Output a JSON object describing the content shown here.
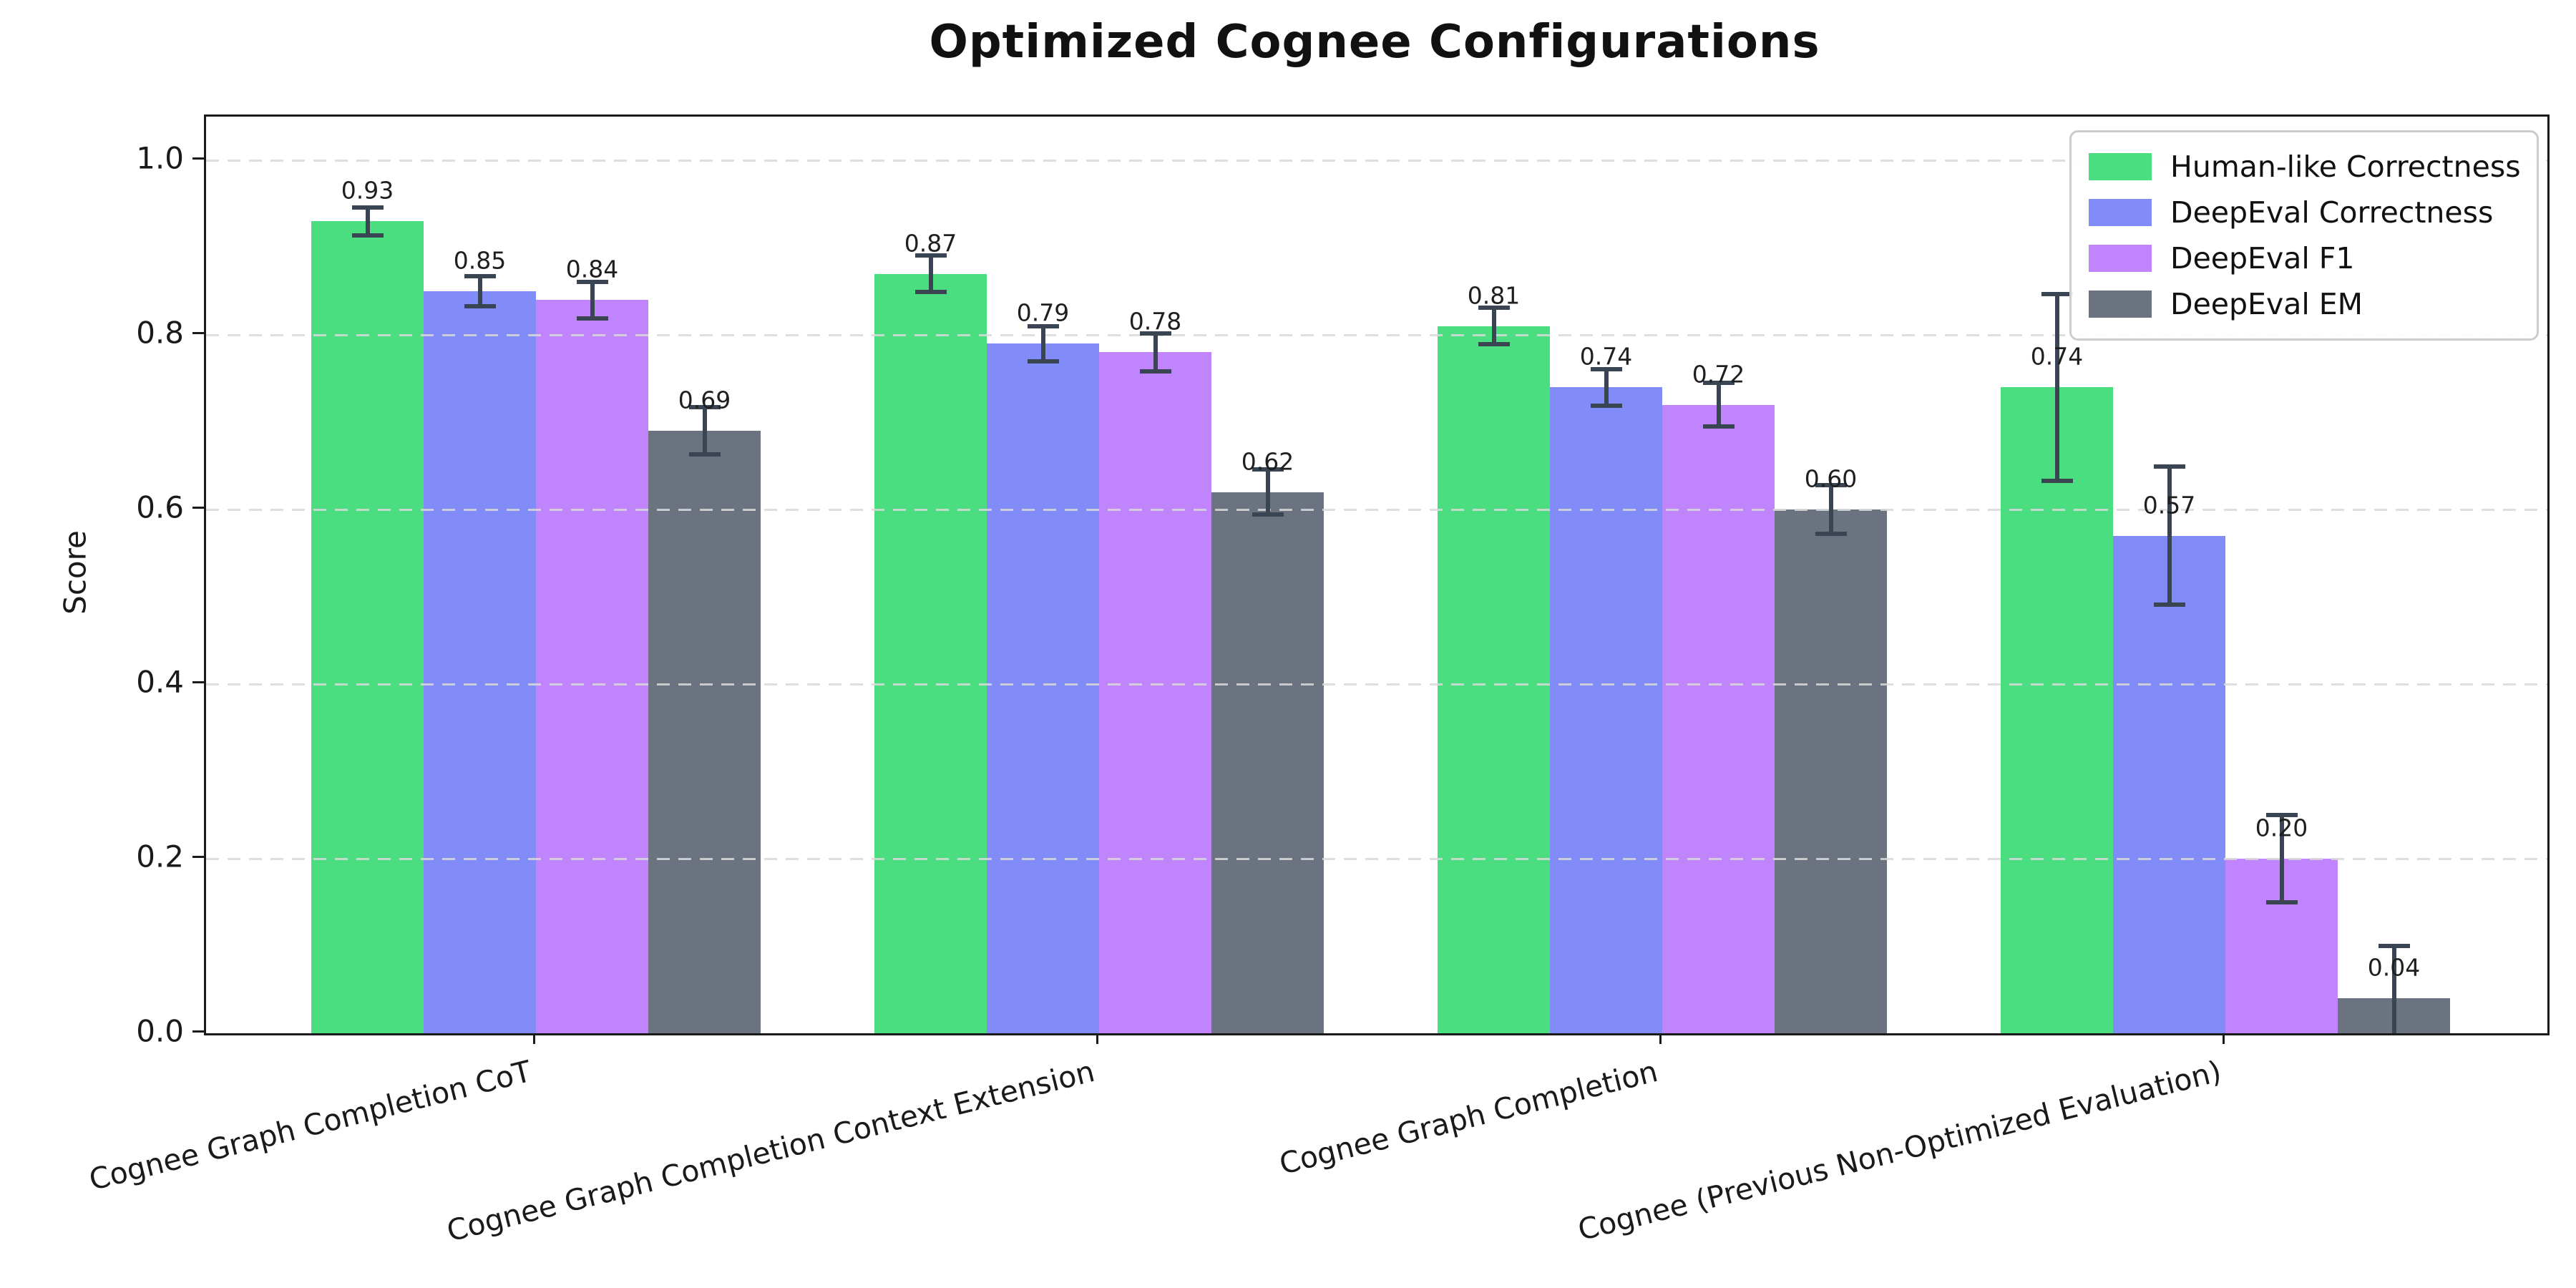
{
  "chart_data": {
    "type": "bar",
    "title": "Optimized Cognee Configurations",
    "ylabel": "Score",
    "xlabel": "",
    "grid": true,
    "legend_position": "upper right",
    "ylim": [
      0,
      1.05
    ],
    "y_ticks": [
      0.0,
      0.2,
      0.4,
      0.6,
      0.8,
      1.0
    ],
    "categories": [
      "Cognee Graph Completion CoT",
      "Cognee Graph Completion Context Extension",
      "Cognee Graph Completion",
      "Cognee (Previous Non-Optimized Evaluation)"
    ],
    "series": [
      {
        "name": "Human-like Correctness",
        "color": "#4ade80",
        "values": [
          0.93,
          0.87,
          0.81,
          0.74
        ],
        "errors": [
          0.016,
          0.021,
          0.021,
          0.107
        ]
      },
      {
        "name": "DeepEval Correctness",
        "color": "#818cf8",
        "values": [
          0.85,
          0.79,
          0.74,
          0.57
        ],
        "errors": [
          0.017,
          0.02,
          0.021,
          0.079
        ]
      },
      {
        "name": "DeepEval F1",
        "color": "#c084fc",
        "values": [
          0.84,
          0.78,
          0.72,
          0.2
        ],
        "errors": [
          0.021,
          0.022,
          0.025,
          0.05
        ]
      },
      {
        "name": "DeepEval EM",
        "color": "#6b7280",
        "values": [
          0.69,
          0.62,
          0.6,
          0.04
        ],
        "errors": [
          0.027,
          0.026,
          0.028,
          0.06
        ]
      }
    ],
    "error_bar_color": "#3a4554"
  }
}
